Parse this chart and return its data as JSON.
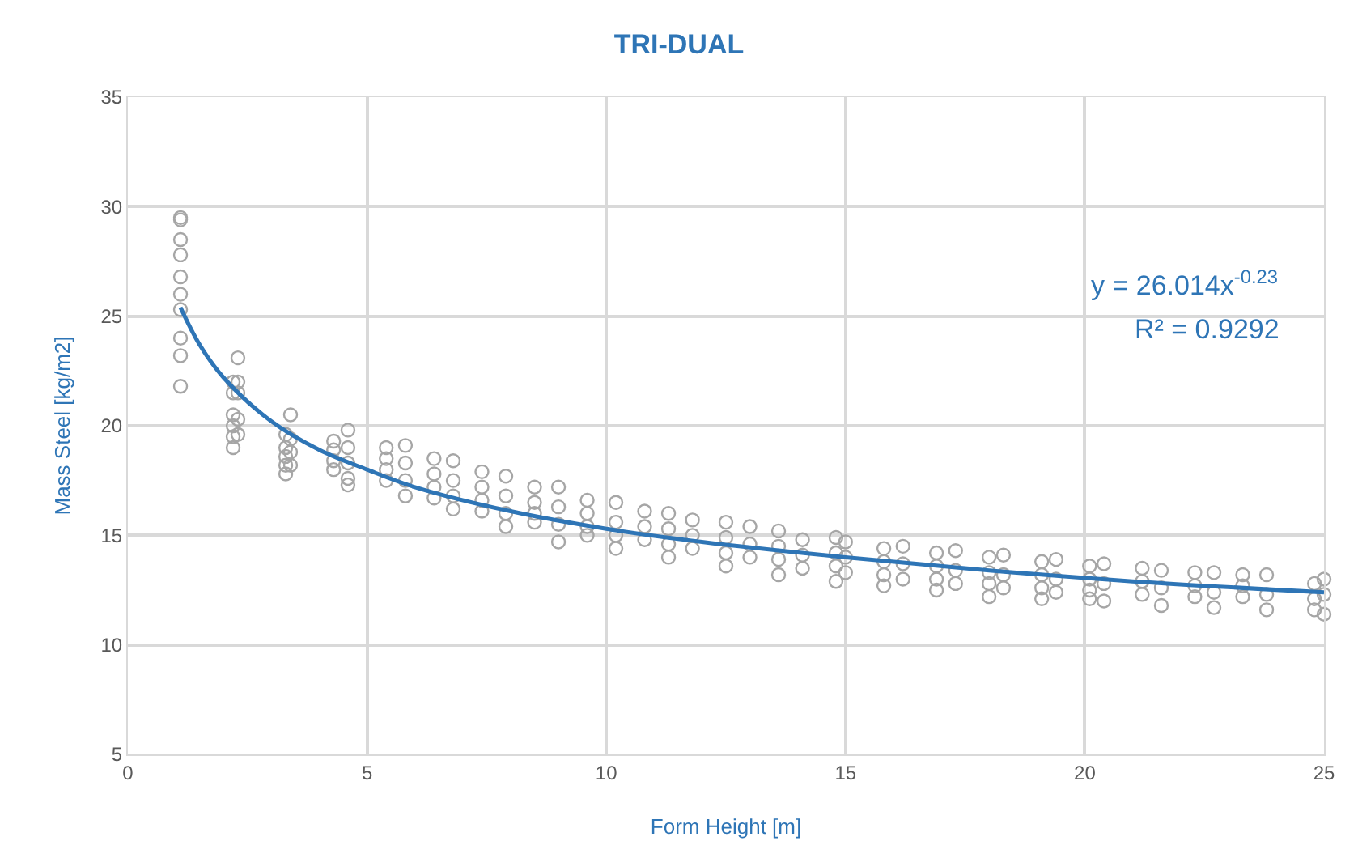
{
  "chart_data": {
    "type": "scatter",
    "title": "TRI-DUAL",
    "xlabel": "Form Height [m]",
    "ylabel": "Mass Steel [kg/m2]",
    "xlim": [
      0,
      25
    ],
    "xticks": [
      0,
      5,
      10,
      15,
      20,
      25
    ],
    "ylim": [
      5,
      35
    ],
    "yticks": [
      5,
      10,
      15,
      20,
      25,
      30,
      35
    ],
    "grid": true,
    "annotations": [
      "y = 26.014x$^{-0.23}$",
      "R² = 0.9292"
    ],
    "series": [
      {
        "marker": "circle",
        "color": "#a6a6a6",
        "x": [
          1.1,
          1.1,
          1.1,
          1.1,
          1.1,
          1.1,
          1.1,
          1.1,
          1.1,
          1.1,
          2.2,
          2.2,
          2.2,
          2.2,
          2.2,
          2.2,
          2.3,
          2.3,
          2.3,
          2.3,
          2.3,
          3.3,
          3.3,
          3.3,
          3.3,
          3.3,
          3.4,
          3.4,
          3.4,
          3.4,
          4.3,
          4.3,
          4.3,
          4.3,
          4.6,
          4.6,
          4.6,
          4.6,
          4.6,
          5.4,
          5.4,
          5.4,
          5.4,
          5.8,
          5.8,
          5.8,
          5.8,
          6.4,
          6.4,
          6.4,
          6.4,
          6.8,
          6.8,
          6.8,
          6.8,
          7.4,
          7.4,
          7.4,
          7.4,
          7.9,
          7.9,
          7.9,
          7.9,
          8.5,
          8.5,
          8.5,
          8.5,
          9.0,
          9.0,
          9.0,
          9.0,
          9.6,
          9.6,
          9.6,
          9.6,
          10.2,
          10.2,
          10.2,
          10.2,
          10.8,
          10.8,
          10.8,
          11.3,
          11.3,
          11.3,
          11.3,
          11.8,
          11.8,
          11.8,
          12.5,
          12.5,
          12.5,
          12.5,
          13.0,
          13.0,
          13.0,
          13.6,
          13.6,
          13.6,
          13.6,
          14.1,
          14.1,
          14.1,
          14.8,
          14.8,
          14.8,
          14.8,
          15.0,
          15.0,
          15.0,
          15.8,
          15.8,
          15.8,
          15.8,
          16.2,
          16.2,
          16.2,
          16.9,
          16.9,
          16.9,
          16.9,
          17.3,
          17.3,
          17.3,
          18.0,
          18.0,
          18.0,
          18.0,
          18.3,
          18.3,
          18.3,
          19.1,
          19.1,
          19.1,
          19.1,
          19.4,
          19.4,
          19.4,
          20.1,
          20.1,
          20.1,
          20.1,
          20.4,
          20.4,
          20.4,
          21.2,
          21.2,
          21.2,
          21.6,
          21.6,
          21.6,
          22.3,
          22.3,
          22.3,
          22.7,
          22.7,
          22.7,
          23.3,
          23.3,
          23.3,
          23.8,
          23.8,
          23.8,
          24.8,
          24.8,
          24.8,
          25.0,
          25.0,
          25.0
        ],
        "values": [
          29.5,
          29.4,
          28.5,
          27.8,
          26.8,
          26,
          25.3,
          24,
          23.2,
          21.8,
          22,
          21.5,
          20.5,
          20,
          19.5,
          19,
          23.1,
          22,
          21.5,
          20.3,
          19.6,
          19.6,
          19,
          18.6,
          18.2,
          17.8,
          20.5,
          19.4,
          18.8,
          18.2,
          19.3,
          18.9,
          18.4,
          18,
          19.8,
          19,
          18.3,
          17.6,
          17.3,
          19,
          18.5,
          18,
          17.5,
          19.1,
          18.3,
          17.5,
          16.8,
          18.5,
          17.8,
          17.2,
          16.7,
          18.4,
          17.5,
          16.8,
          16.2,
          17.9,
          17.2,
          16.6,
          16.1,
          17.7,
          16.8,
          16,
          15.4,
          17.2,
          16.5,
          16,
          15.6,
          17.2,
          16.3,
          15.5,
          14.7,
          16.6,
          16,
          15.4,
          15,
          16.5,
          15.6,
          15,
          14.4,
          16.1,
          15.4,
          14.8,
          16,
          15.3,
          14.6,
          14,
          15.7,
          15,
          14.4,
          15.6,
          14.9,
          14.2,
          13.6,
          15.4,
          14.6,
          14,
          15.2,
          14.5,
          13.9,
          13.2,
          14.8,
          14.1,
          13.5,
          14.9,
          14.2,
          13.6,
          12.9,
          14.7,
          14,
          13.3,
          14.4,
          13.8,
          13.2,
          12.7,
          14.5,
          13.7,
          13,
          14.2,
          13.6,
          13,
          12.5,
          14.3,
          13.4,
          12.8,
          14,
          13.3,
          12.8,
          12.2,
          14.1,
          13.2,
          12.6,
          13.8,
          13.2,
          12.6,
          12.1,
          13.9,
          13,
          12.4,
          13.6,
          13,
          12.5,
          12.1,
          13.7,
          12.8,
          12,
          13.5,
          12.9,
          12.3,
          13.4,
          12.6,
          11.8,
          13.3,
          12.7,
          12.2,
          13.3,
          12.4,
          11.7,
          13.2,
          12.7,
          12.2,
          13.2,
          12.3,
          11.6,
          12.8,
          12.1,
          11.6,
          13,
          12.3,
          11.4
        ]
      },
      {
        "type": "line",
        "marker": "none",
        "line_style": "solid",
        "color": "#2e75b6",
        "x": [
          1.1,
          1.5,
          2,
          3,
          4,
          5,
          6,
          8,
          10,
          12,
          15,
          18,
          21,
          25
        ],
        "values": [
          25.4,
          23.7,
          22.2,
          20.2,
          18.9,
          18,
          17.2,
          16.1,
          15.3,
          14.7,
          14,
          13.4,
          12.9,
          12.4
        ]
      }
    ]
  }
}
